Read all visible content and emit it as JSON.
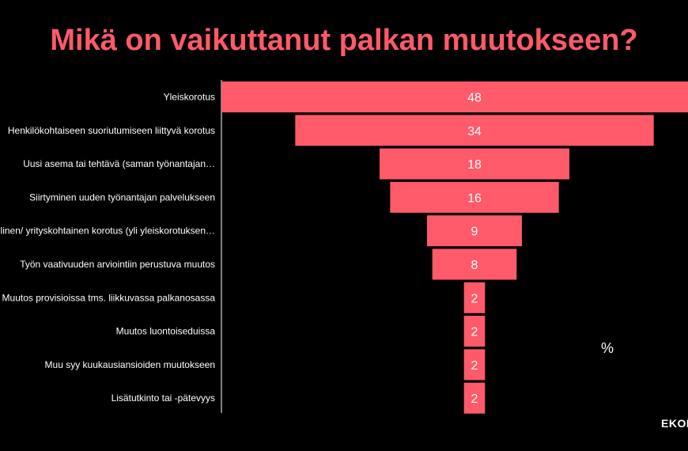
{
  "colors": {
    "bar": "#ff5a6a",
    "title": "#ff5a6a",
    "background": "#000000",
    "text": "#ffffff"
  },
  "unit_label": "%",
  "brand": "EKON",
  "chart_data": {
    "type": "bar",
    "orientation": "horizontal-funnel",
    "title": "Mikä on vaikuttanut palkan muutokseen?",
    "categories": [
      "Yleiskorotus",
      "Henkilökohtaiseen suoriutumiseen liittyvä korotus",
      "Uusi asema tai tehtävä (saman työnantajan…",
      "Siirtyminen uuden työnantajan palvelukseen",
      "Paikallinen/ yrityskohtainen korotus (yli yleiskorotuksen…",
      "Työn vaativuuden arviointiin perustuva muutos",
      "Muutos provisioissa tms. liikkuvassa palkanosassa",
      "Muutos luontoiseduissa",
      "Muu syy kuukausiansioiden muutokseen",
      "Lisätutkinto tai -pätevyys"
    ],
    "values": [
      48,
      34,
      18,
      16,
      9,
      8,
      2,
      2,
      2,
      2
    ],
    "xlabel": "%",
    "ylabel": "",
    "grid": false,
    "legend": "none"
  }
}
